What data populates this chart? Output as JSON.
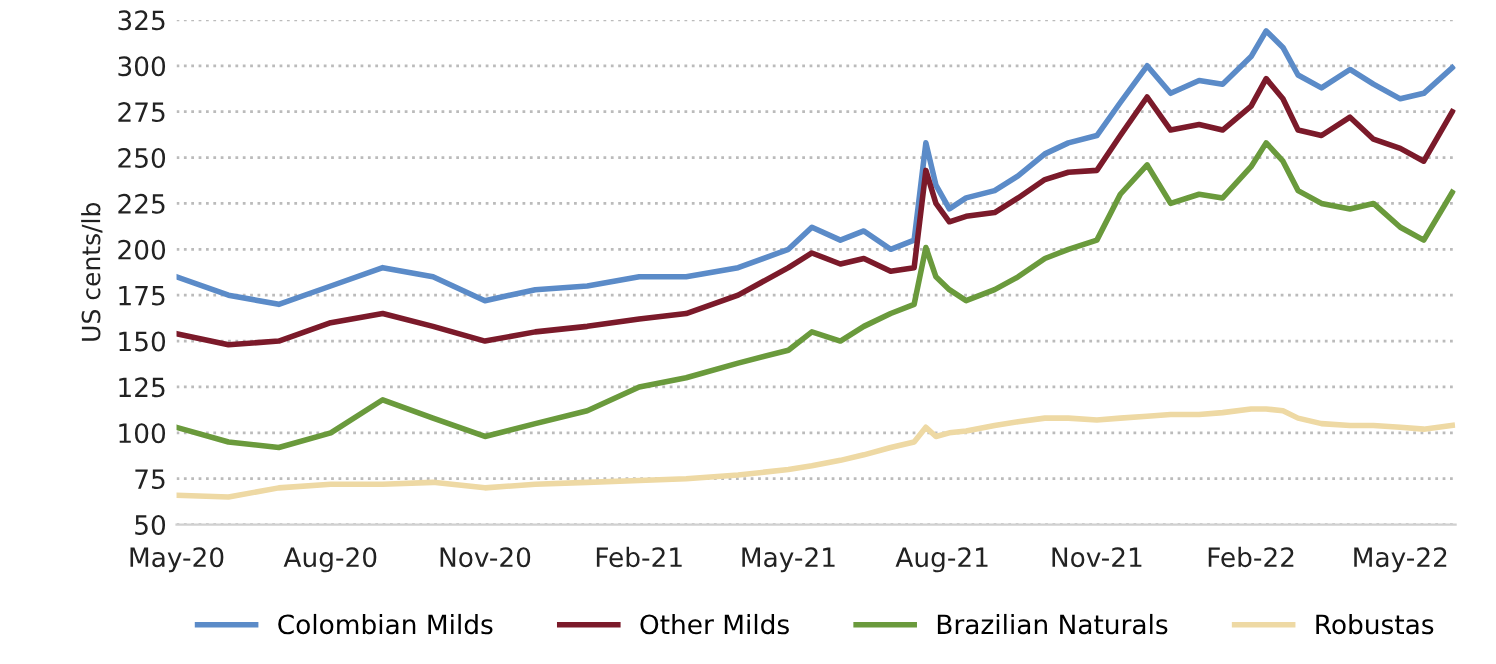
{
  "chart_data": {
    "type": "line",
    "ylabel": "US cents/lb",
    "x": [
      "2020-05-01",
      "2020-06-01",
      "2020-07-01",
      "2020-08-01",
      "2020-09-01",
      "2020-10-01",
      "2020-11-01",
      "2020-12-01",
      "2021-01-01",
      "2021-02-01",
      "2021-03-01",
      "2021-04-01",
      "2021-05-01",
      "2021-05-15",
      "2021-06-01",
      "2021-06-15",
      "2021-07-01",
      "2021-07-15",
      "2021-07-22",
      "2021-07-28",
      "2021-08-05",
      "2021-08-15",
      "2021-09-01",
      "2021-09-15",
      "2021-10-01",
      "2021-10-15",
      "2021-11-01",
      "2021-11-15",
      "2021-12-01",
      "2021-12-15",
      "2022-01-01",
      "2022-01-15",
      "2022-02-01",
      "2022-02-10",
      "2022-02-20",
      "2022-03-01",
      "2022-03-15",
      "2022-04-01",
      "2022-04-15",
      "2022-05-01",
      "2022-05-15",
      "2022-06-01"
    ],
    "series": [
      {
        "name": "Colombian Milds",
        "color": "#5b8bc8",
        "values": [
          185,
          175,
          170,
          180,
          190,
          185,
          172,
          178,
          180,
          185,
          185,
          190,
          200,
          212,
          205,
          210,
          200,
          205,
          258,
          235,
          222,
          228,
          232,
          240,
          252,
          258,
          262,
          280,
          300,
          285,
          292,
          290,
          305,
          319,
          310,
          295,
          288,
          298,
          290,
          282,
          285,
          299
        ]
      },
      {
        "name": "Other Milds",
        "color": "#7b1a2a",
        "values": [
          154,
          148,
          150,
          160,
          165,
          158,
          150,
          155,
          158,
          162,
          165,
          175,
          190,
          198,
          192,
          195,
          188,
          190,
          243,
          225,
          215,
          218,
          220,
          228,
          238,
          242,
          243,
          262,
          283,
          265,
          268,
          265,
          278,
          293,
          282,
          265,
          262,
          272,
          260,
          255,
          248,
          275
        ]
      },
      {
        "name": "Brazilian Naturals",
        "color": "#6a9a3c",
        "values": [
          103,
          95,
          92,
          100,
          118,
          108,
          98,
          105,
          112,
          125,
          130,
          138,
          145,
          155,
          150,
          158,
          165,
          170,
          201,
          185,
          178,
          172,
          178,
          185,
          195,
          200,
          205,
          230,
          246,
          225,
          230,
          228,
          245,
          258,
          248,
          232,
          225,
          222,
          225,
          212,
          205,
          231
        ]
      },
      {
        "name": "Robustas",
        "color": "#eed9a4",
        "values": [
          66,
          65,
          70,
          72,
          72,
          73,
          70,
          72,
          73,
          74,
          75,
          77,
          80,
          82,
          85,
          88,
          92,
          95,
          103,
          98,
          100,
          101,
          104,
          106,
          108,
          108,
          107,
          108,
          109,
          110,
          110,
          111,
          113,
          113,
          112,
          108,
          105,
          104,
          104,
          103,
          102,
          104
        ]
      }
    ],
    "xlim": [
      "2020-05-01",
      "2022-06-03"
    ],
    "xticks": [
      {
        "value": "2020-05-01",
        "label": "May-20"
      },
      {
        "value": "2020-08-01",
        "label": "Aug-20"
      },
      {
        "value": "2020-11-01",
        "label": "Nov-20"
      },
      {
        "value": "2021-02-01",
        "label": "Feb-21"
      },
      {
        "value": "2021-05-01",
        "label": "May-21"
      },
      {
        "value": "2021-08-01",
        "label": "Aug-21"
      },
      {
        "value": "2021-11-01",
        "label": "Nov-21"
      },
      {
        "value": "2022-02-01",
        "label": "Feb-22"
      },
      {
        "value": "2022-05-01",
        "label": "May-22"
      }
    ],
    "ylim": [
      50,
      325
    ],
    "yticks": [
      50,
      75,
      100,
      125,
      150,
      175,
      200,
      225,
      250,
      275,
      300,
      325
    ],
    "grid": "y",
    "legend": "bottom",
    "line_style": "solid",
    "marker": "none"
  }
}
